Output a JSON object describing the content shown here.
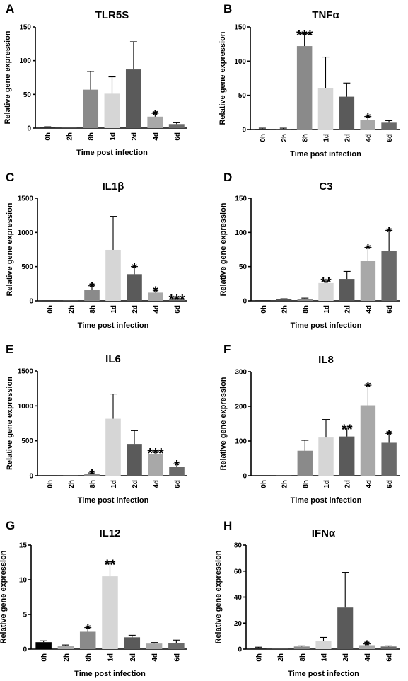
{
  "chart_data": [
    {
      "panel": "A",
      "title": "TLR5S",
      "type": "bar",
      "categories": [
        "0h",
        "2h",
        "8h",
        "1d",
        "2d",
        "4d",
        "6d"
      ],
      "values": [
        1,
        0.5,
        57,
        51,
        87,
        17,
        6
      ],
      "errors": [
        1,
        0.5,
        27,
        25,
        41,
        5,
        2
      ],
      "significance": [
        "",
        "",
        "",
        "",
        "",
        "*",
        ""
      ],
      "bar_colors": [
        "#2b2b2b",
        "#4a4a4a",
        "#8a8a8a",
        "#d6d6d6",
        "#5a5a5a",
        "#a8a8a8",
        "#6a6a6a"
      ],
      "ylim": [
        0,
        150
      ],
      "yticks": [
        0,
        50,
        100,
        150
      ],
      "xlabel": "Time post infection",
      "ylabel": "Relative gene expression"
    },
    {
      "panel": "B",
      "title": "TNFα",
      "type": "bar",
      "categories": [
        "0h",
        "2h",
        "8h",
        "1d",
        "2d",
        "4d",
        "6d"
      ],
      "values": [
        1,
        1,
        122,
        61,
        48,
        14,
        10
      ],
      "errors": [
        1,
        1,
        18,
        45,
        20,
        5,
        3
      ],
      "significance": [
        "",
        "",
        "***",
        "",
        "",
        "*",
        ""
      ],
      "bar_colors": [
        "#2b2b2b",
        "#4a4a4a",
        "#8a8a8a",
        "#d6d6d6",
        "#5a5a5a",
        "#a8a8a8",
        "#6a6a6a"
      ],
      "ylim": [
        0,
        150
      ],
      "yticks": [
        0,
        50,
        100,
        150
      ],
      "xlabel": "Time post infection",
      "ylabel": "Relative gene expression"
    },
    {
      "panel": "C",
      "title": "IL1β",
      "type": "bar",
      "categories": [
        "0h",
        "2h",
        "8h",
        "1d",
        "2d",
        "4d",
        "6d"
      ],
      "values": [
        1,
        1,
        160,
        745,
        390,
        120,
        30
      ],
      "errors": [
        1,
        1,
        60,
        490,
        110,
        40,
        10
      ],
      "significance": [
        "",
        "",
        "*",
        "",
        "*",
        "*",
        "***"
      ],
      "bar_colors": [
        "#2b2b2b",
        "#4a4a4a",
        "#8a8a8a",
        "#d6d6d6",
        "#5a5a5a",
        "#a8a8a8",
        "#6a6a6a"
      ],
      "ylim": [
        0,
        1500
      ],
      "yticks": [
        0,
        500,
        1000,
        1500
      ],
      "xlabel": "Time post infection",
      "ylabel": "Relative gene expression"
    },
    {
      "panel": "D",
      "title": "C3",
      "type": "bar",
      "categories": [
        "0h",
        "2h",
        "8h",
        "1d",
        "2d",
        "4d",
        "6d"
      ],
      "values": [
        1,
        2,
        3,
        26,
        32,
        58,
        73
      ],
      "errors": [
        0.5,
        1,
        1,
        3,
        11,
        20,
        30
      ],
      "significance": [
        "",
        "",
        "",
        "**",
        "",
        "*",
        "*"
      ],
      "bar_colors": [
        "#2b2b2b",
        "#4a4a4a",
        "#8a8a8a",
        "#d6d6d6",
        "#5a5a5a",
        "#a8a8a8",
        "#6a6a6a"
      ],
      "ylim": [
        0,
        150
      ],
      "yticks": [
        0,
        50,
        100,
        150
      ],
      "xlabel": "Time post infection",
      "ylabel": "Relative gene expression"
    },
    {
      "panel": "E",
      "title": "IL6",
      "type": "bar",
      "categories": [
        "0h",
        "2h",
        "8h",
        "1d",
        "2d",
        "4d",
        "6d"
      ],
      "values": [
        1,
        1,
        30,
        815,
        455,
        305,
        130
      ],
      "errors": [
        1,
        1,
        10,
        355,
        190,
        40,
        40
      ],
      "significance": [
        "",
        "",
        "*",
        "",
        "",
        "***",
        "*"
      ],
      "bar_colors": [
        "#2b2b2b",
        "#4a4a4a",
        "#8a8a8a",
        "#d6d6d6",
        "#5a5a5a",
        "#a8a8a8",
        "#6a6a6a"
      ],
      "ylim": [
        0,
        1500
      ],
      "yticks": [
        0,
        500,
        1000,
        1500
      ],
      "xlabel": "Time post infection",
      "ylabel": "Relative gene expression"
    },
    {
      "panel": "F",
      "title": "IL8",
      "type": "bar",
      "categories": [
        "0h",
        "2h",
        "8h",
        "1d",
        "2d",
        "4d",
        "6d"
      ],
      "values": [
        1,
        1,
        72,
        110,
        113,
        203,
        95
      ],
      "errors": [
        1,
        1,
        30,
        52,
        25,
        58,
        27
      ],
      "significance": [
        "",
        "",
        "",
        "",
        "**",
        "*",
        "*"
      ],
      "bar_colors": [
        "#2b2b2b",
        "#4a4a4a",
        "#8a8a8a",
        "#d6d6d6",
        "#5a5a5a",
        "#a8a8a8",
        "#6a6a6a"
      ],
      "ylim": [
        0,
        300
      ],
      "yticks": [
        0,
        100,
        200,
        300
      ],
      "xlabel": "Time post infection",
      "ylabel": "Relative gene expression"
    },
    {
      "panel": "G",
      "title": "IL12",
      "type": "bar",
      "categories": [
        "0h",
        "2h",
        "8h",
        "1d",
        "2d",
        "4d",
        "6d"
      ],
      "values": [
        1,
        0.5,
        2.5,
        10.5,
        1.7,
        0.8,
        0.9
      ],
      "errors": [
        0.2,
        0.1,
        0.6,
        1.9,
        0.3,
        0.15,
        0.4
      ],
      "significance": [
        "",
        "",
        "*",
        "**",
        "",
        "",
        ""
      ],
      "bar_colors": [
        "#000000",
        "#aaaaaa",
        "#8a8a8a",
        "#d6d6d6",
        "#5a5a5a",
        "#a8a8a8",
        "#6a6a6a"
      ],
      "ylim": [
        0,
        15
      ],
      "yticks": [
        0,
        5,
        10,
        15
      ],
      "xlabel": "Time post infection",
      "ylabel": "Relative gene expression"
    },
    {
      "panel": "H",
      "title": "IFNα",
      "type": "bar",
      "categories": [
        "0h",
        "2h",
        "8h",
        "1d",
        "2d",
        "4d",
        "6d"
      ],
      "values": [
        1,
        0.3,
        2,
        6,
        32,
        3,
        2
      ],
      "errors": [
        0.5,
        0.3,
        0.5,
        3,
        27,
        1,
        0.5
      ],
      "significance": [
        "",
        "",
        "",
        "",
        "",
        "*",
        ""
      ],
      "bar_colors": [
        "#2b2b2b",
        "#4a4a4a",
        "#8a8a8a",
        "#d6d6d6",
        "#5a5a5a",
        "#a8a8a8",
        "#6a6a6a"
      ],
      "ylim": [
        0,
        80
      ],
      "yticks": [
        0,
        20,
        40,
        60,
        80
      ],
      "xlabel": "Time post infection",
      "ylabel": "Relative gene expression"
    }
  ]
}
